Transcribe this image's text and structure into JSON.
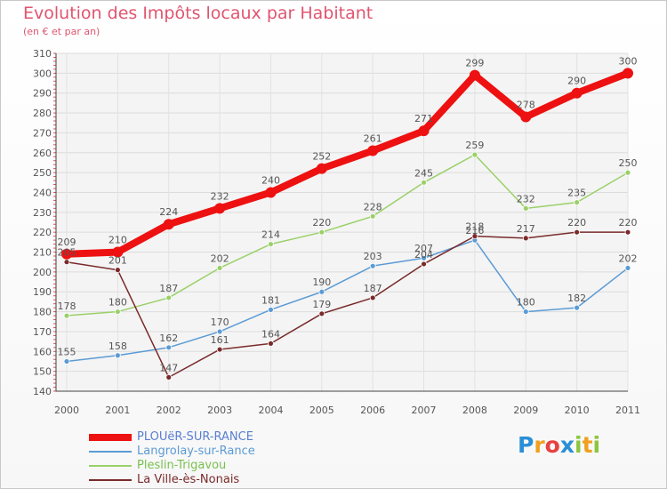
{
  "title": "Evolution des Impôts locaux par Habitant",
  "subtitle": "(en € et par an)",
  "logo": {
    "letters": [
      {
        "ch": "P",
        "color": "#2a8fd6"
      },
      {
        "ch": "r",
        "color": "#f0a020"
      },
      {
        "ch": "o",
        "color": "#e84040"
      },
      {
        "ch": "x",
        "color": "#2a8fd6"
      },
      {
        "ch": "i",
        "color": "#8cc63f"
      },
      {
        "ch": "t",
        "color": "#f0a020"
      },
      {
        "ch": "i",
        "color": "#8cc63f"
      }
    ]
  },
  "chart_data": {
    "type": "line",
    "title": "Evolution des Impôts locaux par Habitant",
    "subtitle": "(en € et par an)",
    "x": [
      "2000",
      "2001",
      "2002",
      "2003",
      "2004",
      "2005",
      "2006",
      "2007",
      "2008",
      "2009",
      "2010",
      "2011"
    ],
    "ylim": [
      140,
      310
    ],
    "yticks": [
      140,
      150,
      160,
      170,
      180,
      190,
      200,
      210,
      220,
      230,
      240,
      250,
      260,
      270,
      280,
      290,
      300,
      310
    ],
    "grid": true,
    "legend": "bottom-left",
    "series": [
      {
        "name": "PLOUëR-SUR-RANCE",
        "color": "#ee1111",
        "labelColor": "#5a7fd0",
        "thick": true,
        "values": [
          209,
          210,
          224,
          232,
          240,
          252,
          261,
          271,
          299,
          278,
          290,
          300
        ]
      },
      {
        "name": "Langrolay-sur-Rance",
        "color": "#5b9bd5",
        "labelColor": "#5b9bd5",
        "thick": false,
        "values": [
          155,
          158,
          162,
          170,
          181,
          190,
          203,
          207,
          216,
          180,
          182,
          202
        ]
      },
      {
        "name": "Pleslin-Trigavou",
        "color": "#9ad068",
        "labelColor": "#7ac050",
        "thick": false,
        "values": [
          178,
          180,
          187,
          202,
          214,
          220,
          228,
          245,
          259,
          232,
          235,
          250
        ]
      },
      {
        "name": "La Ville-ès-Nonais",
        "color": "#7a2a2a",
        "labelColor": "#7a2a2a",
        "thick": false,
        "values": [
          205,
          201,
          147,
          161,
          164,
          179,
          187,
          204,
          218,
          217,
          220,
          220
        ]
      }
    ]
  }
}
